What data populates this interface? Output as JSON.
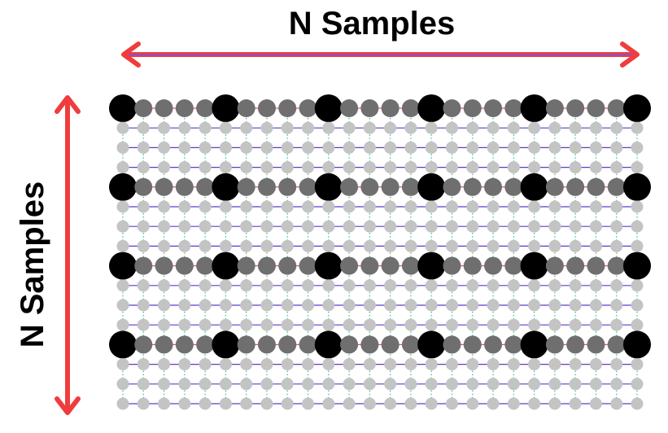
{
  "top_label": "N Samples",
  "left_label": "N Samples",
  "colors": {
    "arrow": "#f03c3c",
    "arrow_inner": "#8a4fd0",
    "major_node": "#000000",
    "row_node": "#6f6f6f",
    "minor_node": "#c4c4c4",
    "h_link": "#5a3ad6",
    "v_link": "#2fbf8f",
    "red_mark": "#e03030"
  },
  "grid": {
    "columns": 26,
    "rows": 16,
    "major_every": 5,
    "row_every": 4
  }
}
